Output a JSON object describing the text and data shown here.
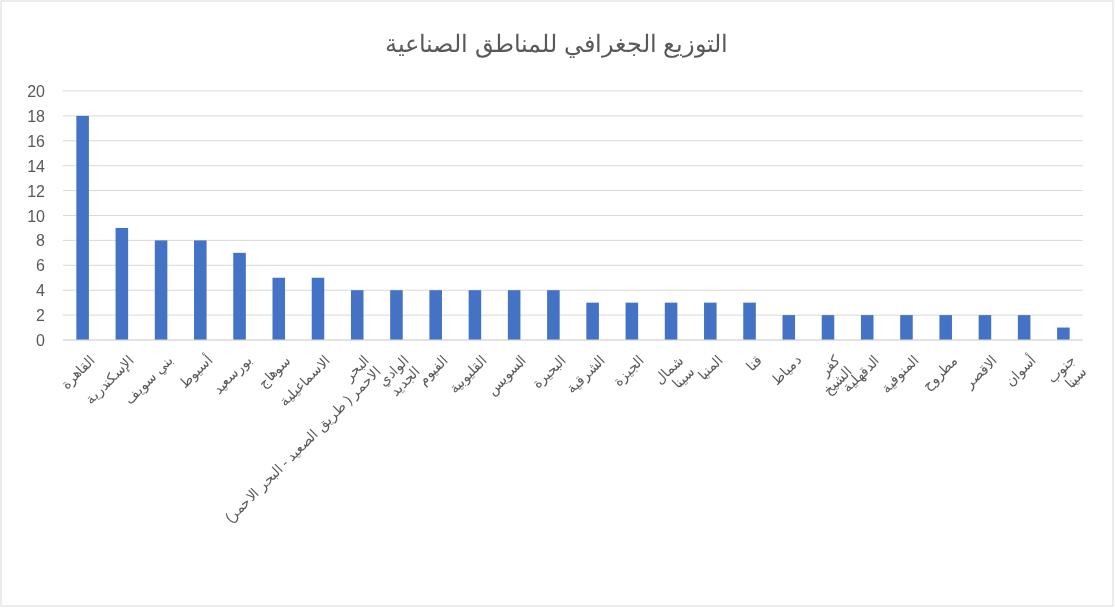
{
  "chart_data": {
    "type": "bar",
    "title": "التوزيع الجغرافي للمناطق الصناعية",
    "categories": [
      "القاهرة",
      "الإسكندرية",
      "بني سويف",
      "أسيوط",
      "بورسعيد",
      "سوهاج",
      "الاسماعيلية",
      "البحر الاحمر ( طريق الصعيد - البحر الاحمر)",
      "الوادي الجديد",
      "الفيوم",
      "القليوبية",
      "السويس",
      "البحيرة",
      "الشرقية",
      "الجيزة",
      "شمال سينا",
      "المنيا",
      "قنا",
      "دمياط",
      "كفر الشيخ",
      "الدقهلية",
      "المنوفية",
      "مطروح",
      "الاقصر",
      "أسوان",
      "جنوب سينا"
    ],
    "values": [
      18,
      9,
      8,
      8,
      7,
      5,
      5,
      4,
      4,
      4,
      4,
      4,
      4,
      3,
      3,
      3,
      3,
      3,
      2,
      2,
      2,
      2,
      2,
      2,
      2,
      1
    ],
    "color": "#4472c4",
    "ylim": [
      0,
      20
    ],
    "yticks": [
      0,
      2,
      4,
      6,
      8,
      10,
      12,
      14,
      16,
      18,
      20
    ],
    "grid": "y"
  }
}
